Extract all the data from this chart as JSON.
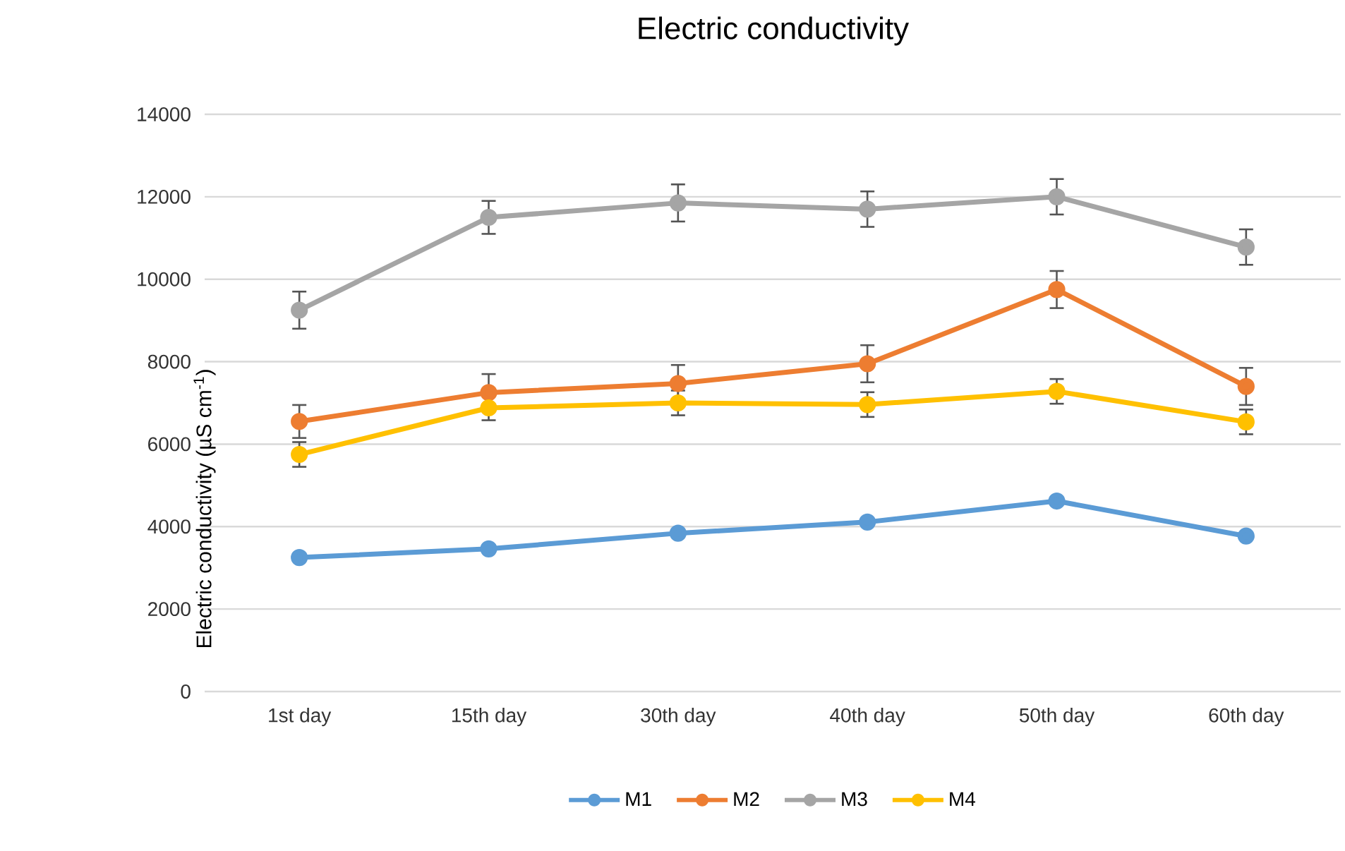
{
  "chart_data": {
    "type": "line",
    "title": "Electric conductivity",
    "ylabel": "Electric conductivity (µS cm$^{-1}$)",
    "categories": [
      "1st day",
      "15th day",
      "30th day",
      "40th day",
      "50th day",
      "60th day"
    ],
    "series": [
      {
        "name": "M1",
        "color": "#5b9bd5",
        "values": [
          3250,
          3460,
          3840,
          4110,
          4620,
          3770
        ]
      },
      {
        "name": "M2",
        "color": "#ed7d31",
        "values": [
          6550,
          7250,
          7470,
          7950,
          9750,
          7400
        ],
        "errors": [
          400,
          450,
          450,
          450,
          450,
          450
        ]
      },
      {
        "name": "M3",
        "color": "#a5a5a5",
        "values": [
          9250,
          11500,
          11850,
          11700,
          12000,
          10780
        ],
        "errors": [
          450,
          400,
          450,
          430,
          430,
          430
        ]
      },
      {
        "name": "M4",
        "color": "#ffc000",
        "values": [
          5750,
          6880,
          7000,
          6960,
          7280,
          6540
        ],
        "errors": [
          300,
          300,
          300,
          300,
          300,
          300
        ]
      }
    ],
    "ylim": [
      0,
      14000
    ],
    "yticks": [
      0,
      2000,
      4000,
      6000,
      8000,
      10000,
      12000,
      14000
    ],
    "grid": "y",
    "legend": "bottom",
    "marker": "circle",
    "line_style": "solid"
  }
}
